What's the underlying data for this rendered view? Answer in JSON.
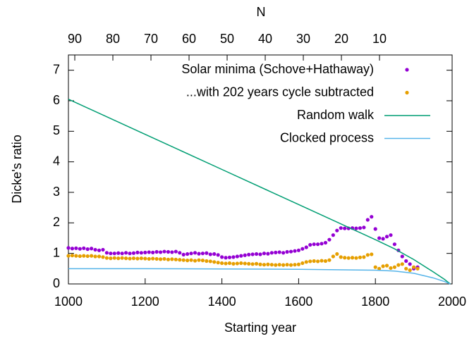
{
  "chart_data": {
    "type": "scatter",
    "xlabel": "Starting year",
    "ylabel": "Dicke's ratio",
    "x2label": "N",
    "xlim": [
      1000,
      2000
    ],
    "xticks": [
      1000,
      1200,
      1400,
      1600,
      1800,
      2000
    ],
    "ylim": [
      0,
      7.5
    ],
    "yticks": [
      0,
      1,
      2,
      3,
      4,
      5,
      6,
      7
    ],
    "x2lim": [
      91.67,
      -9.07
    ],
    "x2ticks": [
      90,
      80,
      70,
      60,
      50,
      40,
      30,
      20,
      10
    ],
    "legend": "top-right",
    "series": [
      {
        "name": "Solar minima (Schove+Hathaway)",
        "color": "#9400d3",
        "mode": "points",
        "x": [
          1000,
          1010,
          1020,
          1030,
          1040,
          1050,
          1060,
          1070,
          1080,
          1090,
          1100,
          1110,
          1120,
          1130,
          1140,
          1150,
          1160,
          1170,
          1180,
          1190,
          1200,
          1210,
          1220,
          1230,
          1240,
          1250,
          1260,
          1270,
          1280,
          1290,
          1300,
          1310,
          1320,
          1330,
          1340,
          1350,
          1360,
          1370,
          1380,
          1390,
          1400,
          1410,
          1420,
          1430,
          1440,
          1450,
          1460,
          1470,
          1480,
          1490,
          1500,
          1510,
          1520,
          1530,
          1540,
          1550,
          1560,
          1570,
          1580,
          1590,
          1600,
          1610,
          1620,
          1630,
          1640,
          1650,
          1660,
          1670,
          1680,
          1690,
          1700,
          1710,
          1720,
          1730,
          1740,
          1750,
          1760,
          1770,
          1780,
          1790,
          1800,
          1810,
          1820,
          1830,
          1840,
          1850,
          1860,
          1870,
          1880,
          1890,
          1900,
          1910
        ],
        "values": [
          1.18,
          1.16,
          1.17,
          1.15,
          1.17,
          1.14,
          1.16,
          1.12,
          1.1,
          1.12,
          1.02,
          1.0,
          1.0,
          1.01,
          1.0,
          1.02,
          1.0,
          1.01,
          1.03,
          1.02,
          1.03,
          1.04,
          1.03,
          1.05,
          1.04,
          1.06,
          1.05,
          1.04,
          1.06,
          1.02,
          0.96,
          0.98,
          1.0,
          1.02,
          0.99,
          1.0,
          1.01,
          0.97,
          0.98,
          0.95,
          0.88,
          0.86,
          0.87,
          0.88,
          0.9,
          0.92,
          0.94,
          0.96,
          0.97,
          0.98,
          0.97,
          1.0,
          0.99,
          1.02,
          1.03,
          1.04,
          1.02,
          1.05,
          1.06,
          1.08,
          1.1,
          1.15,
          1.2,
          1.28,
          1.3,
          1.3,
          1.32,
          1.35,
          1.45,
          1.6,
          1.75,
          1.83,
          1.82,
          1.82,
          1.83,
          1.82,
          1.83,
          1.85,
          2.1,
          2.2,
          1.8,
          1.5,
          1.48,
          1.55,
          1.6,
          1.3,
          1.1,
          0.9,
          0.75,
          0.65,
          0.5,
          0.55
        ]
      },
      {
        "name": "...with 202 years cycle subtracted",
        "color": "#e69f00",
        "mode": "points",
        "x": [
          1000,
          1010,
          1020,
          1030,
          1040,
          1050,
          1060,
          1070,
          1080,
          1090,
          1100,
          1110,
          1120,
          1130,
          1140,
          1150,
          1160,
          1170,
          1180,
          1190,
          1200,
          1210,
          1220,
          1230,
          1240,
          1250,
          1260,
          1270,
          1280,
          1290,
          1300,
          1310,
          1320,
          1330,
          1340,
          1350,
          1360,
          1370,
          1380,
          1390,
          1400,
          1410,
          1420,
          1430,
          1440,
          1450,
          1460,
          1470,
          1480,
          1490,
          1500,
          1510,
          1520,
          1530,
          1540,
          1550,
          1560,
          1570,
          1580,
          1590,
          1600,
          1610,
          1620,
          1630,
          1640,
          1650,
          1660,
          1670,
          1680,
          1690,
          1700,
          1710,
          1720,
          1730,
          1740,
          1750,
          1760,
          1770,
          1780,
          1790,
          1800,
          1810,
          1820,
          1830,
          1840,
          1850,
          1860,
          1870,
          1880,
          1890,
          1900,
          1910
        ],
        "values": [
          0.92,
          0.93,
          0.92,
          0.91,
          0.92,
          0.91,
          0.92,
          0.9,
          0.9,
          0.88,
          0.85,
          0.84,
          0.85,
          0.84,
          0.85,
          0.84,
          0.83,
          0.84,
          0.83,
          0.84,
          0.83,
          0.82,
          0.83,
          0.82,
          0.81,
          0.82,
          0.8,
          0.81,
          0.8,
          0.79,
          0.78,
          0.77,
          0.78,
          0.76,
          0.78,
          0.77,
          0.75,
          0.74,
          0.72,
          0.7,
          0.68,
          0.67,
          0.68,
          0.66,
          0.67,
          0.68,
          0.67,
          0.66,
          0.65,
          0.66,
          0.64,
          0.63,
          0.64,
          0.63,
          0.62,
          0.63,
          0.62,
          0.63,
          0.62,
          0.63,
          0.64,
          0.68,
          0.72,
          0.74,
          0.75,
          0.74,
          0.76,
          0.75,
          0.78,
          0.9,
          0.98,
          0.88,
          0.86,
          0.85,
          0.86,
          0.85,
          0.87,
          0.88,
          0.95,
          0.97,
          0.55,
          0.5,
          0.58,
          0.6,
          0.52,
          0.55,
          0.62,
          0.65,
          0.5,
          0.45,
          0.55,
          0.5
        ]
      },
      {
        "name": "Random walk",
        "color": "#009e73",
        "mode": "line",
        "x": [
          1000,
          1200,
          1400,
          1600,
          1800,
          1850,
          1900,
          1950,
          1980,
          1995
        ],
        "values": [
          6.05,
          4.9,
          3.75,
          2.6,
          1.45,
          1.15,
          0.8,
          0.4,
          0.15,
          0
        ]
      },
      {
        "name": "Clocked process",
        "color": "#56b4e9",
        "mode": "line",
        "x": [
          1000,
          1200,
          1400,
          1600,
          1800,
          1850,
          1900,
          1950,
          1980,
          1995
        ],
        "values": [
          0.5,
          0.5,
          0.49,
          0.48,
          0.45,
          0.42,
          0.35,
          0.2,
          0.08,
          0
        ]
      }
    ]
  }
}
